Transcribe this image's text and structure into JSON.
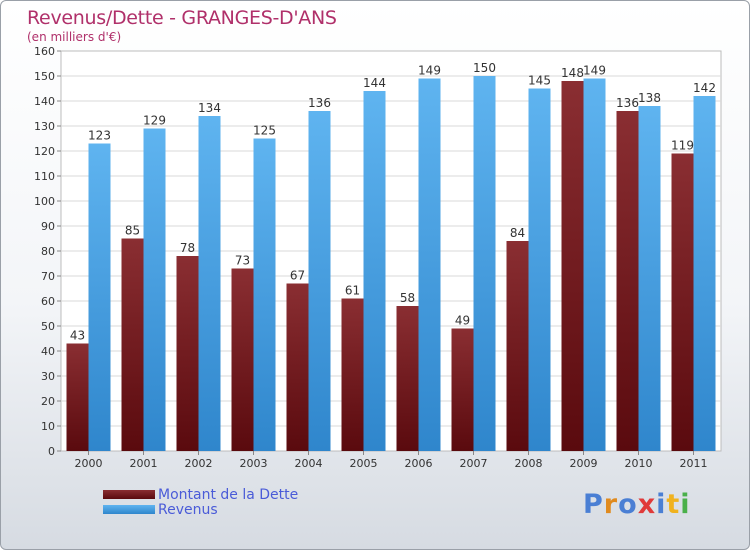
{
  "chart_data": {
    "type": "bar",
    "title": "Revenus/Dette - GRANGES-D'ANS",
    "subtitle": "(en milliers d'€)",
    "categories": [
      "2000",
      "2001",
      "2002",
      "2003",
      "2004",
      "2005",
      "2006",
      "2007",
      "2008",
      "2009",
      "2010",
      "2011"
    ],
    "series": [
      {
        "name": "Montant de la Dette",
        "color": "#7a1a1e",
        "values": [
          43,
          85,
          78,
          73,
          67,
          61,
          58,
          49,
          84,
          148,
          136,
          119
        ]
      },
      {
        "name": "Revenus",
        "color": "#4aa3e6",
        "values": [
          123,
          129,
          134,
          125,
          136,
          144,
          149,
          150,
          145,
          149,
          138,
          142
        ]
      }
    ],
    "ylim": [
      0,
      160
    ],
    "ytick_step": 10,
    "grid": true,
    "legend": "bottom-left"
  },
  "logo": {
    "text": "Proxiti",
    "colors": [
      "#4a7fd4",
      "#e08a1e",
      "#4a7fd4",
      "#e03a3a",
      "#4a7fd4",
      "#f0b21e",
      "#4ab04a"
    ]
  }
}
